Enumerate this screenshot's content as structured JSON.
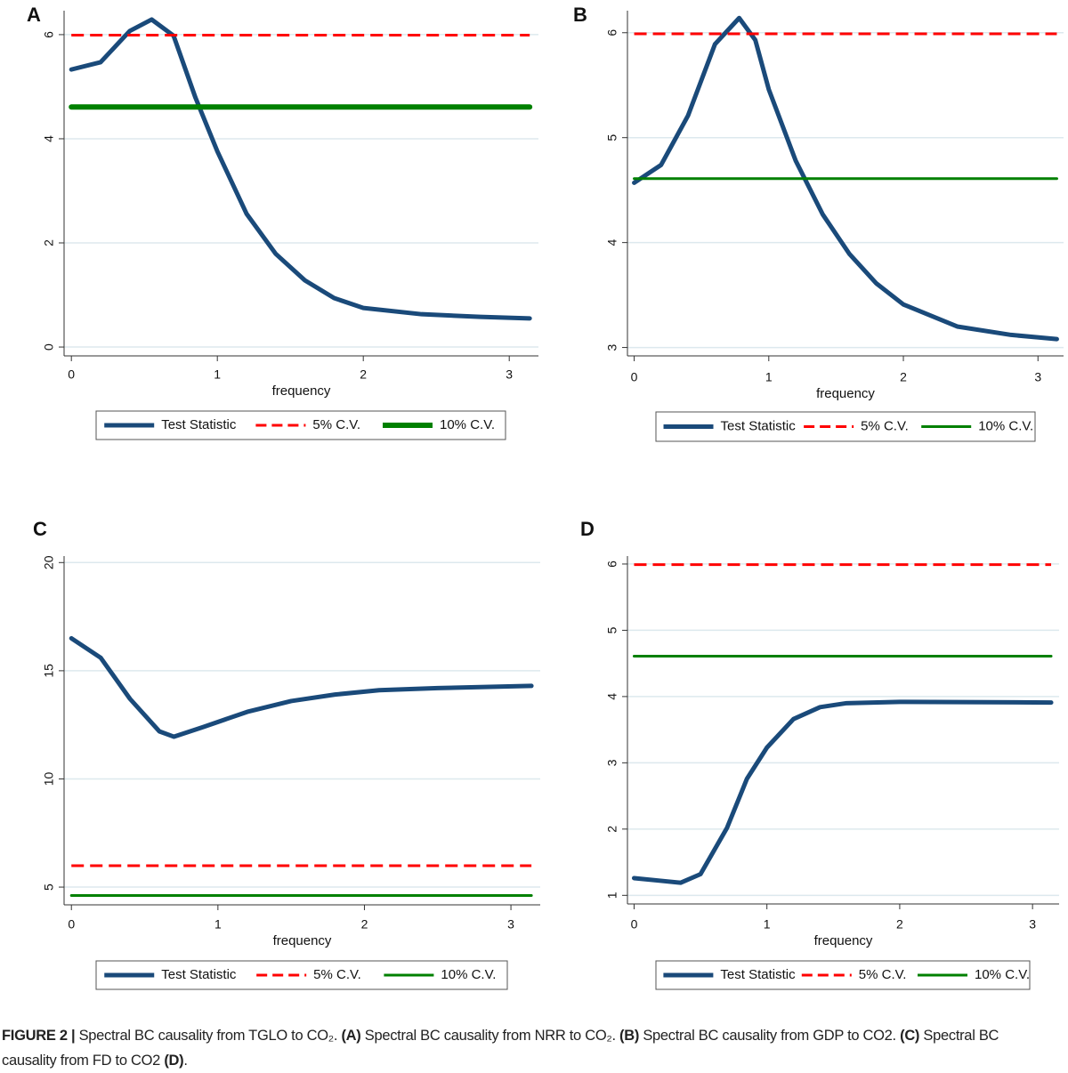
{
  "chart_data": [
    {
      "type": "line",
      "panel": "A",
      "xlabel": "frequency",
      "xlim": [
        -0.05,
        3.2
      ],
      "ylim": [
        -0.17,
        6.46
      ],
      "xticks": [
        0,
        1,
        2,
        3
      ],
      "yticks": [
        0,
        2,
        4,
        6
      ],
      "grid": true,
      "x": [
        0,
        0.2,
        0.4,
        0.55,
        0.7,
        0.85,
        1.0,
        1.2,
        1.4,
        1.6,
        1.8,
        2.0,
        2.4,
        2.8,
        3.14
      ],
      "series": [
        {
          "name": "Test Statistic",
          "color": "#1a4a7a",
          "width": 5,
          "dashed": false,
          "values": [
            5.33,
            5.47,
            6.07,
            6.29,
            5.98,
            4.79,
            3.76,
            2.56,
            1.79,
            1.28,
            0.94,
            0.75,
            0.63,
            0.58,
            0.55
          ]
        },
        {
          "name": "5% C.V.",
          "color": "#ff0000",
          "width": 3,
          "dashed": true,
          "values": [
            5.99,
            5.99,
            5.99,
            5.99,
            5.99,
            5.99,
            5.99,
            5.99,
            5.99,
            5.99,
            5.99,
            5.99,
            5.99,
            5.99,
            5.99
          ]
        },
        {
          "name": "10% C.V.",
          "color": "#008000",
          "width": 6,
          "dashed": false,
          "values": [
            4.61,
            4.61,
            4.61,
            4.61,
            4.61,
            4.61,
            4.61,
            4.61,
            4.61,
            4.61,
            4.61,
            4.61,
            4.61,
            4.61,
            4.61
          ]
        }
      ]
    },
    {
      "type": "line",
      "panel": "B",
      "xlabel": "frequency",
      "xlim": [
        -0.05,
        3.19
      ],
      "ylim": [
        2.92,
        6.21
      ],
      "xticks": [
        0,
        1,
        2,
        3
      ],
      "yticks": [
        3,
        4,
        5,
        6
      ],
      "grid": true,
      "x": [
        0,
        0.2,
        0.4,
        0.6,
        0.78,
        0.9,
        1.0,
        1.2,
        1.4,
        1.6,
        1.8,
        2.0,
        2.4,
        2.8,
        3.14
      ],
      "series": [
        {
          "name": "Test Statistic",
          "color": "#1a4a7a",
          "width": 5,
          "dashed": false,
          "values": [
            4.57,
            4.74,
            5.21,
            5.89,
            6.14,
            5.93,
            5.46,
            4.78,
            4.27,
            3.89,
            3.61,
            3.41,
            3.2,
            3.12,
            3.08
          ]
        },
        {
          "name": "5% C.V.",
          "color": "#ff0000",
          "width": 3,
          "dashed": true,
          "values": [
            5.99,
            5.99,
            5.99,
            5.99,
            5.99,
            5.99,
            5.99,
            5.99,
            5.99,
            5.99,
            5.99,
            5.99,
            5.99,
            5.99,
            5.99
          ]
        },
        {
          "name": "10% C.V.",
          "color": "#008000",
          "width": 3,
          "dashed": false,
          "values": [
            4.61,
            4.61,
            4.61,
            4.61,
            4.61,
            4.61,
            4.61,
            4.61,
            4.61,
            4.61,
            4.61,
            4.61,
            4.61,
            4.61,
            4.61
          ]
        }
      ]
    },
    {
      "type": "line",
      "panel": "C",
      "xlabel": "frequency",
      "xlim": [
        -0.05,
        3.2
      ],
      "ylim": [
        4.18,
        20.3
      ],
      "xticks": [
        0,
        1,
        2,
        3
      ],
      "yticks": [
        5,
        10,
        15,
        20
      ],
      "grid": true,
      "x": [
        0,
        0.2,
        0.4,
        0.6,
        0.7,
        0.9,
        1.2,
        1.5,
        1.8,
        2.1,
        2.5,
        3.14
      ],
      "series": [
        {
          "name": "Test Statistic",
          "color": "#1a4a7a",
          "width": 5,
          "dashed": false,
          "values": [
            16.5,
            15.6,
            13.7,
            12.2,
            11.95,
            12.4,
            13.1,
            13.6,
            13.9,
            14.1,
            14.2,
            14.3
          ]
        },
        {
          "name": "5% C.V.",
          "color": "#ff0000",
          "width": 3,
          "dashed": true,
          "values": [
            5.99,
            5.99,
            5.99,
            5.99,
            5.99,
            5.99,
            5.99,
            5.99,
            5.99,
            5.99,
            5.99,
            5.99
          ]
        },
        {
          "name": "10% C.V.",
          "color": "#008000",
          "width": 3,
          "dashed": false,
          "values": [
            4.61,
            4.61,
            4.61,
            4.61,
            4.61,
            4.61,
            4.61,
            4.61,
            4.61,
            4.61,
            4.61,
            4.61
          ]
        }
      ]
    },
    {
      "type": "line",
      "panel": "D",
      "xlabel": "frequency",
      "xlim": [
        -0.05,
        3.2
      ],
      "ylim": [
        0.87,
        6.12
      ],
      "xticks": [
        0,
        1,
        2,
        3
      ],
      "yticks": [
        1,
        2,
        3,
        4,
        5,
        6
      ],
      "grid": true,
      "x": [
        0,
        0.2,
        0.35,
        0.5,
        0.7,
        0.85,
        1.0,
        1.2,
        1.4,
        1.6,
        2.0,
        3.14
      ],
      "series": [
        {
          "name": "Test Statistic",
          "color": "#1a4a7a",
          "width": 5,
          "dashed": false,
          "values": [
            1.26,
            1.22,
            1.19,
            1.32,
            2.02,
            2.76,
            3.23,
            3.66,
            3.84,
            3.9,
            3.92,
            3.91
          ]
        },
        {
          "name": "5% C.V.",
          "color": "#ff0000",
          "width": 3,
          "dashed": true,
          "values": [
            5.99,
            5.99,
            5.99,
            5.99,
            5.99,
            5.99,
            5.99,
            5.99,
            5.99,
            5.99,
            5.99,
            5.99
          ]
        },
        {
          "name": "10% C.V.",
          "color": "#008000",
          "width": 3,
          "dashed": false,
          "values": [
            4.61,
            4.61,
            4.61,
            4.61,
            4.61,
            4.61,
            4.61,
            4.61,
            4.61,
            4.61,
            4.61,
            4.61
          ]
        }
      ]
    }
  ],
  "caption": [
    {
      "text": "FIGURE 2 |",
      "bold": true
    },
    {
      "text": " Spectral BC causality from TGLO to CO₂. ",
      "bold": false
    },
    {
      "text": "(A)",
      "bold": true
    },
    {
      "text": " Spectral BC causality from NRR to CO₂. ",
      "bold": false
    },
    {
      "text": "(B)",
      "bold": true
    },
    {
      "text": " Spectral BC causality from GDP to CO2. ",
      "bold": false
    },
    {
      "text": "(C)",
      "bold": true
    },
    {
      "text": " Spectral BC causality from FD to CO2 ",
      "bold": false
    },
    {
      "text": "(D)",
      "bold": true
    },
    {
      "text": ".",
      "bold": false
    }
  ]
}
